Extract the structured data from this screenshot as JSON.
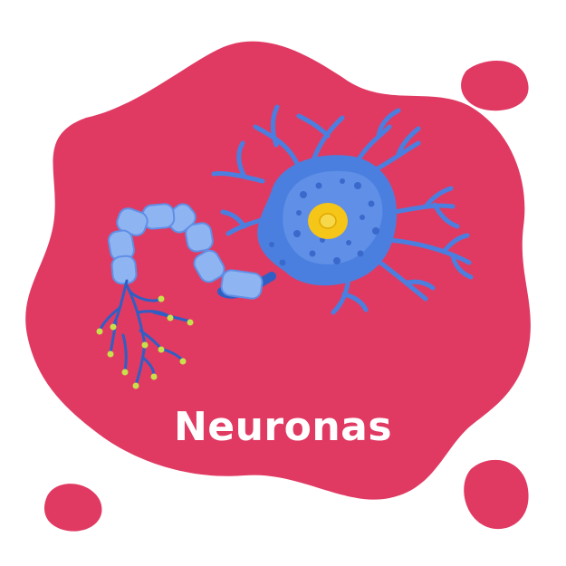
{
  "title": "Neuronas",
  "colors": {
    "background": "#ffffff",
    "blob": "#e03a63",
    "neuron_body": "#4a7fe0",
    "neuron_light": "#8fb4f2",
    "neuron_dark": "#2f5fc4",
    "myelin": "#7fa4ee",
    "nucleus": "#f5c518",
    "terminal": "#c8e04a",
    "title_text": "#ffffff"
  },
  "illustration": {
    "subject": "neuron-icon"
  }
}
